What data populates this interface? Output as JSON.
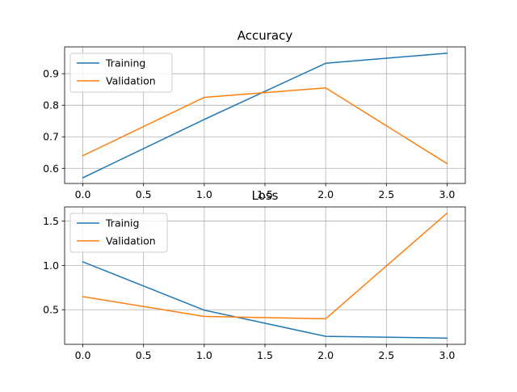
{
  "chart_data": [
    {
      "type": "line",
      "title": "Accuracy",
      "xlabel": "",
      "ylabel": "",
      "x": [
        0,
        1,
        2,
        3
      ],
      "series": [
        {
          "name": "Training",
          "color": "#1f77b4",
          "values": [
            0.57,
            0.755,
            0.933,
            0.965
          ]
        },
        {
          "name": "Validation",
          "color": "#ff7f0e",
          "values": [
            0.64,
            0.825,
            0.855,
            0.615
          ]
        }
      ],
      "xlim": [
        -0.15,
        3.15
      ],
      "ylim": [
        0.552,
        0.985
      ],
      "xticks": [
        0.0,
        0.5,
        1.0,
        1.5,
        2.0,
        2.5,
        3.0
      ],
      "xtick_labels": [
        "0.0",
        "0.5",
        "1.0",
        "1.5",
        "2.0",
        "2.5",
        "3.0"
      ],
      "yticks": [
        0.6,
        0.7,
        0.8,
        0.9
      ],
      "ytick_labels": [
        "0.6",
        "0.7",
        "0.8",
        "0.9"
      ],
      "grid": true,
      "legend_position": "upper left"
    },
    {
      "type": "line",
      "title": "Loss",
      "xlabel": "",
      "ylabel": "",
      "x": [
        0,
        1,
        2,
        3
      ],
      "series": [
        {
          "name": "Trainig",
          "color": "#1f77b4",
          "values": [
            1.04,
            0.495,
            0.2,
            0.18
          ]
        },
        {
          "name": "Validation",
          "color": "#ff7f0e",
          "values": [
            0.648,
            0.425,
            0.398,
            1.59
          ]
        }
      ],
      "xlim": [
        -0.15,
        3.15
      ],
      "ylim": [
        0.11,
        1.66
      ],
      "xticks": [
        0.0,
        0.5,
        1.0,
        1.5,
        2.0,
        2.5,
        3.0
      ],
      "xtick_labels": [
        "0.0",
        "0.5",
        "1.0",
        "1.5",
        "2.0",
        "2.5",
        "3.0"
      ],
      "yticks": [
        0.5,
        1.0,
        1.5
      ],
      "ytick_labels": [
        "0.5",
        "1.0",
        "1.5"
      ],
      "grid": true,
      "legend_position": "upper left"
    }
  ],
  "style": {
    "grid_color": "#b0b0b0",
    "axis_color": "#000000",
    "legend_border_color": "#cccccc"
  }
}
